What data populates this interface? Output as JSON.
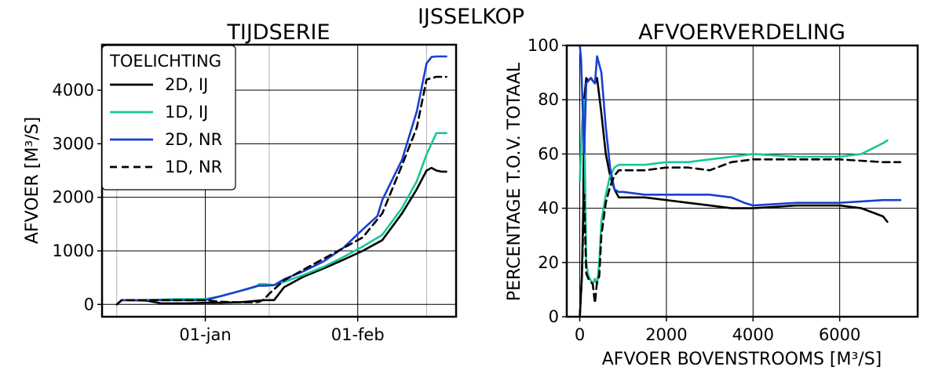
{
  "figure": {
    "title": "IJSSELKOP"
  },
  "chart_data": [
    {
      "type": "line",
      "title": "TIJDSERIE",
      "ylabel": "AFVOER [M³/S]",
      "xlabel": "",
      "x_ticks": [
        "01-jan",
        "01-feb"
      ],
      "y_ticks": [
        0,
        1000,
        2000,
        3000,
        4000
      ],
      "ylim": [
        -230,
        4850
      ],
      "xlim_days": [
        -21,
        51
      ],
      "grid": true,
      "legend": {
        "title": "TOELICHTING",
        "placement": "top-left"
      },
      "series": [
        {
          "name": "2D, IJ",
          "color": "#000000",
          "dash": "solid",
          "days": [
            -18,
            -17,
            -16,
            -12,
            -9,
            -4,
            0,
            3,
            7,
            12,
            14,
            16,
            18,
            20,
            24,
            28,
            32,
            36,
            40,
            43,
            45,
            46,
            47,
            48,
            49
          ],
          "values": [
            0,
            80,
            80,
            70,
            20,
            20,
            30,
            30,
            40,
            80,
            80,
            320,
            420,
            520,
            670,
            830,
            1000,
            1200,
            1700,
            2150,
            2500,
            2550,
            2500,
            2480,
            2480
          ]
        },
        {
          "name": "1D, IJ",
          "color": "#16c79a",
          "dash": "solid",
          "days": [
            -18,
            -17,
            -16,
            -12,
            -6,
            0,
            3,
            7,
            10,
            11,
            12,
            14,
            16,
            20,
            24,
            28,
            32,
            36,
            40,
            43,
            45,
            47,
            48,
            49
          ],
          "values": [
            0,
            80,
            80,
            80,
            100,
            100,
            150,
            250,
            320,
            380,
            380,
            360,
            420,
            550,
            700,
            880,
            1080,
            1300,
            1800,
            2300,
            2800,
            3200,
            3200,
            3200
          ]
        },
        {
          "name": "2D, NR",
          "color": "#1a3fd0",
          "dash": "solid",
          "days": [
            -18,
            -17,
            -16,
            -12,
            -6,
            0,
            3,
            7,
            10,
            11,
            12,
            14,
            16,
            20,
            24,
            28,
            32,
            35,
            36,
            40,
            43,
            45,
            46,
            47,
            48,
            49
          ],
          "values": [
            0,
            80,
            80,
            80,
            80,
            80,
            150,
            250,
            330,
            350,
            350,
            360,
            470,
            620,
            800,
            1050,
            1400,
            1650,
            1950,
            2700,
            3600,
            4500,
            4620,
            4630,
            4630,
            4630
          ]
        },
        {
          "name": "1D, NR",
          "color": "#000000",
          "dash": "dashed",
          "days": [
            -18,
            -17,
            -16,
            -12,
            -6,
            0,
            3,
            7,
            10,
            11,
            12,
            13,
            16,
            20,
            24,
            28,
            32,
            36,
            40,
            43,
            45,
            47,
            48,
            49
          ],
          "values": [
            0,
            80,
            80,
            80,
            80,
            80,
            50,
            40,
            40,
            50,
            100,
            200,
            450,
            650,
            850,
            1050,
            1250,
            1700,
            2600,
            3300,
            4200,
            4250,
            4250,
            4250
          ]
        }
      ]
    },
    {
      "type": "line",
      "title": "AFVOERVERDELING",
      "xlabel": "AFVOER BOVENSTROOMS [M³/S]",
      "ylabel": "PERCENTAGE T.O.V. TOTAAL",
      "x_ticks": [
        0,
        2000,
        4000,
        6000
      ],
      "y_ticks": [
        0,
        20,
        40,
        60,
        80,
        100
      ],
      "xlim": [
        -300,
        7800
      ],
      "ylim": [
        0,
        100
      ],
      "grid": true,
      "series": [
        {
          "name": "2D, IJ",
          "color": "#000000",
          "dash": "solid",
          "x": [
            0,
            50,
            80,
            100,
            150,
            200,
            260,
            300,
            350,
            400,
            500,
            600,
            700,
            800,
            900,
            1000,
            1500,
            2000,
            2500,
            3000,
            3500,
            4000,
            5000,
            6000,
            6500,
            7000,
            7100
          ],
          "y": [
            0,
            15,
            40,
            80,
            88,
            87,
            88,
            87,
            86,
            88,
            75,
            60,
            52,
            47,
            44,
            44,
            44,
            43,
            42,
            41,
            40,
            40,
            41,
            41,
            40,
            37,
            35
          ]
        },
        {
          "name": "1D, IJ",
          "color": "#16c79a",
          "dash": "solid",
          "x": [
            0,
            50,
            100,
            150,
            200,
            300,
            350,
            400,
            450,
            500,
            600,
            700,
            800,
            900,
            1000,
            1500,
            2000,
            2500,
            3000,
            3500,
            4000,
            5000,
            6000,
            6500,
            7000,
            7100
          ],
          "y": [
            50,
            70,
            80,
            20,
            15,
            12,
            14,
            12,
            20,
            35,
            45,
            52,
            55,
            56,
            56,
            56,
            57,
            57,
            58,
            59,
            60,
            59,
            59,
            60,
            64,
            65
          ]
        },
        {
          "name": "2D, NR",
          "color": "#1a3fd0",
          "dash": "solid",
          "x": [
            0,
            30,
            60,
            80,
            100,
            150,
            200,
            250,
            300,
            350,
            400,
            500,
            600,
            700,
            800,
            900,
            1000,
            1500,
            2000,
            2500,
            3000,
            3500,
            3800,
            4000,
            5000,
            6000,
            7000,
            7400
          ],
          "y": [
            100,
            95,
            80,
            70,
            60,
            86,
            87,
            88,
            87,
            86,
            96,
            90,
            70,
            55,
            47,
            46,
            46,
            45,
            45,
            45,
            45,
            44,
            42,
            41,
            42,
            42,
            43,
            43
          ]
        },
        {
          "name": "1D, NR",
          "color": "#000000",
          "dash": "dashed",
          "x": [
            0,
            50,
            100,
            150,
            200,
            250,
            300,
            350,
            400,
            450,
            500,
            600,
            700,
            800,
            900,
            1000,
            1500,
            2000,
            2500,
            3000,
            3500,
            4000,
            5000,
            6000,
            7000,
            7400
          ],
          "y": [
            0,
            15,
            45,
            16,
            14,
            13,
            12,
            5,
            13,
            15,
            30,
            42,
            48,
            52,
            54,
            54,
            54,
            55,
            55,
            54,
            57,
            58,
            58,
            58,
            57,
            57
          ]
        }
      ]
    }
  ]
}
